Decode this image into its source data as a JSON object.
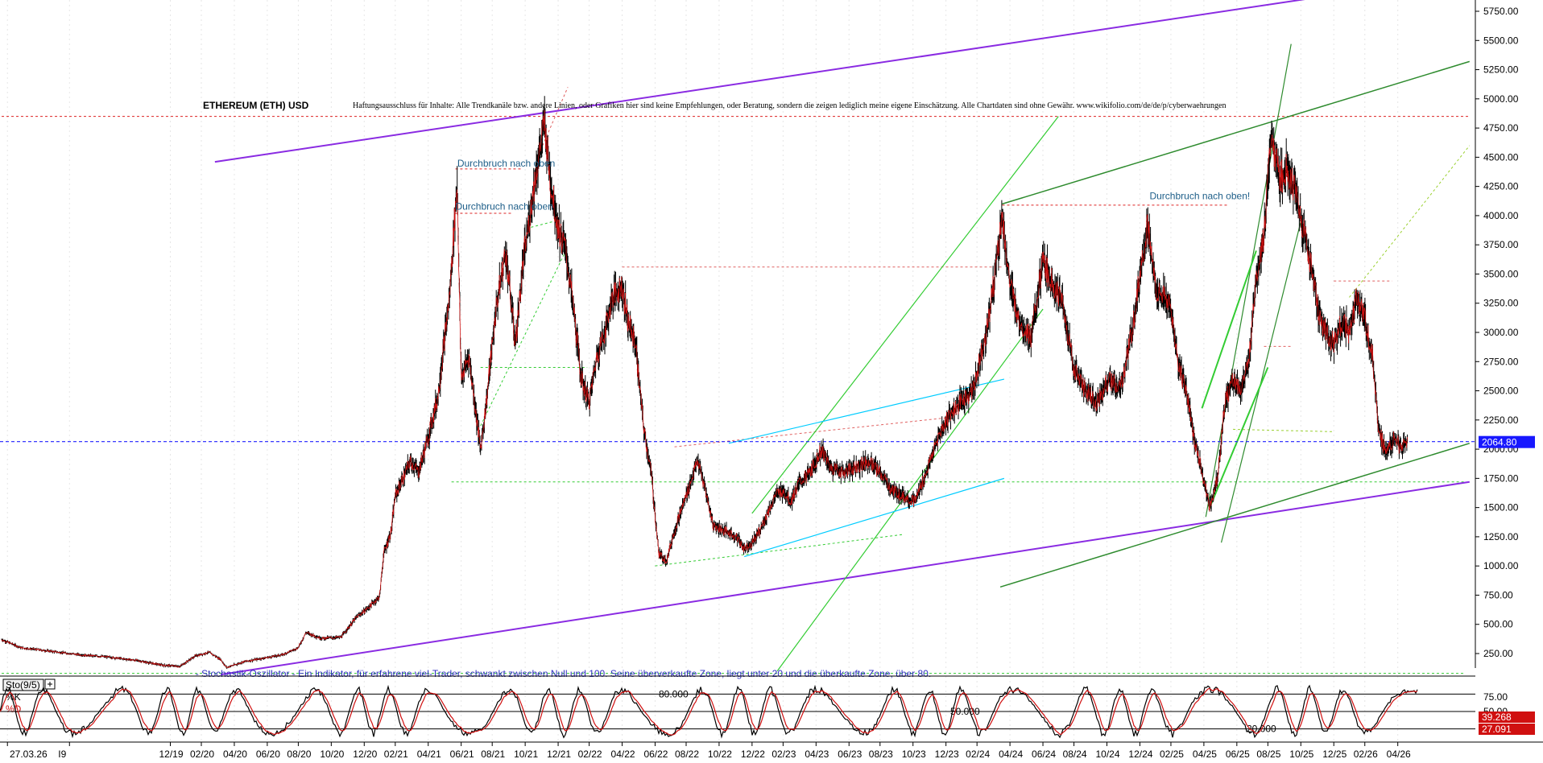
{
  "chart_data": {
    "type": "line",
    "title": "ETHEREUM (ETH) USD",
    "disclaimer": "Haftungsausschluss für Inhalte: Alle Trendkanäle bzw. andere Linien, oder Grafiken hier sind keine Empfehlungen, oder Beratung, sondern die zeigen lediglich meine eigene Einschätzung. Alle Chartdaten sind ohne Gewähr.  www.wikifolio.com/de/de/p/cyberwaehrungen",
    "price_axis": {
      "ylim": [
        0,
        5900
      ],
      "ticks": [
        250,
        500,
        750,
        1000,
        1250,
        1500,
        1750,
        2000,
        2250,
        2500,
        2750,
        3000,
        3250,
        3500,
        3750,
        4000,
        4250,
        4500,
        4750,
        5000,
        5250,
        5500,
        5750
      ],
      "tick_labels": [
        "250.00",
        "500.00",
        "750.00",
        "1000.00",
        "1250.00",
        "1500.00",
        "1750.00",
        "2000.00",
        "2250.00",
        "2500.00",
        "2750.00",
        "3000.00",
        "3250.00",
        "3500.00",
        "3750.00",
        "4000.00",
        "4250.00",
        "4500.00",
        "4750.00",
        "5000.00",
        "5250.00",
        "5500.00",
        "5750.00"
      ]
    },
    "x_axis": {
      "range": [
        2019.05,
        2026.65
      ],
      "ticks": [
        {
          "label": "27.03.26",
          "t": 2019.08
        },
        {
          "label": "I9",
          "t": 2019.4
        },
        {
          "label": "12/19",
          "t": 2019.92
        },
        {
          "label": "02/20",
          "t": 2020.08
        },
        {
          "label": "04/20",
          "t": 2020.25
        },
        {
          "label": "06/20",
          "t": 2020.42
        },
        {
          "label": "08/20",
          "t": 2020.58
        },
        {
          "label": "10/20",
          "t": 2020.75
        },
        {
          "label": "12/20",
          "t": 2020.92
        },
        {
          "label": "02/21",
          "t": 2021.08
        },
        {
          "label": "04/21",
          "t": 2021.25
        },
        {
          "label": "06/21",
          "t": 2021.42
        },
        {
          "label": "08/21",
          "t": 2021.58
        },
        {
          "label": "10/21",
          "t": 2021.75
        },
        {
          "label": "12/21",
          "t": 2021.92
        },
        {
          "label": "02/22",
          "t": 2022.08
        },
        {
          "label": "04/22",
          "t": 2022.25
        },
        {
          "label": "06/22",
          "t": 2022.42
        },
        {
          "label": "08/22",
          "t": 2022.58
        },
        {
          "label": "10/22",
          "t": 2022.75
        },
        {
          "label": "12/22",
          "t": 2022.92
        },
        {
          "label": "02/23",
          "t": 2023.08
        },
        {
          "label": "04/23",
          "t": 2023.25
        },
        {
          "label": "06/23",
          "t": 2023.42
        },
        {
          "label": "08/23",
          "t": 2023.58
        },
        {
          "label": "10/23",
          "t": 2023.75
        },
        {
          "label": "12/23",
          "t": 2023.92
        },
        {
          "label": "02/24",
          "t": 2024.08
        },
        {
          "label": "04/24",
          "t": 2024.25
        },
        {
          "label": "06/24",
          "t": 2024.42
        },
        {
          "label": "08/24",
          "t": 2024.58
        },
        {
          "label": "10/24",
          "t": 2024.75
        },
        {
          "label": "12/24",
          "t": 2024.92
        },
        {
          "label": "02/25",
          "t": 2025.08
        },
        {
          "label": "04/25",
          "t": 2025.25
        },
        {
          "label": "06/25",
          "t": 2025.42
        },
        {
          "label": "08/25",
          "t": 2025.58
        },
        {
          "label": "10/25",
          "t": 2025.75
        },
        {
          "label": "12/25",
          "t": 2025.92
        },
        {
          "label": "02/26",
          "t": 2026.08
        },
        {
          "label": "04/26",
          "t": 2026.25
        }
      ]
    },
    "price_series": [
      [
        2019.05,
        370
      ],
      [
        2019.15,
        300
      ],
      [
        2019.3,
        270
      ],
      [
        2019.45,
        240
      ],
      [
        2019.6,
        220
      ],
      [
        2019.75,
        190
      ],
      [
        2019.88,
        150
      ],
      [
        2019.97,
        140
      ],
      [
        2020.05,
        230
      ],
      [
        2020.12,
        260
      ],
      [
        2020.18,
        200
      ],
      [
        2020.21,
        130
      ],
      [
        2020.3,
        180
      ],
      [
        2020.4,
        210
      ],
      [
        2020.5,
        240
      ],
      [
        2020.58,
        300
      ],
      [
        2020.62,
        430
      ],
      [
        2020.7,
        380
      ],
      [
        2020.8,
        390
      ],
      [
        2020.88,
        560
      ],
      [
        2020.94,
        640
      ],
      [
        2021.0,
        740
      ],
      [
        2021.02,
        1100
      ],
      [
        2021.06,
        1300
      ],
      [
        2021.08,
        1600
      ],
      [
        2021.12,
        1750
      ],
      [
        2021.16,
        1900
      ],
      [
        2021.2,
        1800
      ],
      [
        2021.25,
        2100
      ],
      [
        2021.3,
        2450
      ],
      [
        2021.36,
        3300
      ],
      [
        2021.4,
        4300
      ],
      [
        2021.42,
        2600
      ],
      [
        2021.46,
        2800
      ],
      [
        2021.52,
        2000
      ],
      [
        2021.55,
        2400
      ],
      [
        2021.6,
        3200
      ],
      [
        2021.65,
        3700
      ],
      [
        2021.7,
        2900
      ],
      [
        2021.74,
        3600
      ],
      [
        2021.8,
        4300
      ],
      [
        2021.85,
        4800
      ],
      [
        2021.88,
        4300
      ],
      [
        2021.92,
        3900
      ],
      [
        2021.96,
        3700
      ],
      [
        2022.0,
        3200
      ],
      [
        2022.04,
        2600
      ],
      [
        2022.08,
        2400
      ],
      [
        2022.12,
        2800
      ],
      [
        2022.16,
        3000
      ],
      [
        2022.2,
        3300
      ],
      [
        2022.25,
        3400
      ],
      [
        2022.28,
        3100
      ],
      [
        2022.32,
        2900
      ],
      [
        2022.36,
        2200
      ],
      [
        2022.4,
        1800
      ],
      [
        2022.44,
        1100
      ],
      [
        2022.48,
        1050
      ],
      [
        2022.52,
        1300
      ],
      [
        2022.56,
        1500
      ],
      [
        2022.6,
        1700
      ],
      [
        2022.64,
        1900
      ],
      [
        2022.68,
        1650
      ],
      [
        2022.72,
        1350
      ],
      [
        2022.78,
        1300
      ],
      [
        2022.84,
        1250
      ],
      [
        2022.88,
        1150
      ],
      [
        2022.92,
        1200
      ],
      [
        2022.96,
        1300
      ],
      [
        2023.0,
        1450
      ],
      [
        2023.04,
        1600
      ],
      [
        2023.08,
        1650
      ],
      [
        2023.12,
        1550
      ],
      [
        2023.16,
        1700
      ],
      [
        2023.22,
        1800
      ],
      [
        2023.28,
        2000
      ],
      [
        2023.32,
        1850
      ],
      [
        2023.4,
        1800
      ],
      [
        2023.46,
        1850
      ],
      [
        2023.52,
        1900
      ],
      [
        2023.58,
        1800
      ],
      [
        2023.64,
        1650
      ],
      [
        2023.7,
        1600
      ],
      [
        2023.76,
        1550
      ],
      [
        2023.82,
        1800
      ],
      [
        2023.88,
        2100
      ],
      [
        2023.94,
        2300
      ],
      [
        2024.0,
        2400
      ],
      [
        2024.06,
        2500
      ],
      [
        2024.1,
        2800
      ],
      [
        2024.14,
        3100
      ],
      [
        2024.18,
        3600
      ],
      [
        2024.21,
        4000
      ],
      [
        2024.25,
        3400
      ],
      [
        2024.3,
        3100
      ],
      [
        2024.36,
        2950
      ],
      [
        2024.42,
        3600
      ],
      [
        2024.48,
        3400
      ],
      [
        2024.52,
        3250
      ],
      [
        2024.58,
        2700
      ],
      [
        2024.64,
        2500
      ],
      [
        2024.7,
        2400
      ],
      [
        2024.76,
        2600
      ],
      [
        2024.82,
        2500
      ],
      [
        2024.88,
        3000
      ],
      [
        2024.92,
        3500
      ],
      [
        2024.96,
        3900
      ],
      [
        2025.0,
        3400
      ],
      [
        2025.04,
        3300
      ],
      [
        2025.08,
        3200
      ],
      [
        2025.12,
        2700
      ],
      [
        2025.16,
        2500
      ],
      [
        2025.2,
        2100
      ],
      [
        2025.24,
        1800
      ],
      [
        2025.28,
        1500
      ],
      [
        2025.32,
        1750
      ],
      [
        2025.36,
        2400
      ],
      [
        2025.4,
        2600
      ],
      [
        2025.44,
        2500
      ],
      [
        2025.48,
        2700
      ],
      [
        2025.52,
        3500
      ],
      [
        2025.56,
        3800
      ],
      [
        2025.6,
        4700
      ],
      [
        2025.64,
        4300
      ],
      [
        2025.68,
        4400
      ],
      [
        2025.72,
        4200
      ],
      [
        2025.76,
        3900
      ],
      [
        2025.8,
        3600
      ],
      [
        2025.84,
        3200
      ],
      [
        2025.88,
        3000
      ],
      [
        2025.92,
        2900
      ],
      [
        2025.96,
        3100
      ],
      [
        2026.0,
        3000
      ],
      [
        2026.04,
        3300
      ],
      [
        2026.08,
        3100
      ],
      [
        2026.12,
        2800
      ],
      [
        2026.15,
        2200
      ],
      [
        2026.19,
        1950
      ],
      [
        2026.23,
        2100
      ],
      [
        2026.27,
        2000
      ],
      [
        2026.3,
        2065
      ]
    ],
    "series": [
      {
        "name": "%K",
        "color": "#000000"
      },
      {
        "name": "%D",
        "color": "#d01010"
      }
    ],
    "current_price": 2064.8,
    "current_price_label": "2064.80",
    "price_line_color": "#2020ff",
    "annotations": [
      {
        "text": "Durchbruch nach oben",
        "t": 2021.4,
        "y": 4420
      },
      {
        "text": "Durchbruch nach oben",
        "t": 2021.39,
        "y": 4050
      },
      {
        "text": "Durchbruch nach oben!",
        "t": 2024.97,
        "y": 4140
      },
      {
        "text": "- Stochastik-Oszillator - Ein Indikator, für erfahrene viel-Trader, schwankt zwischen Null und 100. Seine überverkaufte Zone, liegt unter 20 und die überkaufte Zone, über 80.",
        "t": 2020.05,
        "y": 50
      }
    ],
    "trendlines": [
      {
        "color": "#8a2be2",
        "width": 2,
        "points": [
          [
            2020.15,
            4460
          ],
          [
            2025.96,
            5900
          ]
        ]
      },
      {
        "color": "#8a2be2",
        "width": 2,
        "points": [
          [
            2020.18,
            70
          ],
          [
            2026.62,
            1720
          ]
        ]
      },
      {
        "color": "#2e8b2e",
        "width": 1.5,
        "points": [
          [
            2024.21,
            4100
          ],
          [
            2026.62,
            5320
          ]
        ]
      },
      {
        "color": "#2e8b2e",
        "width": 1.5,
        "points": [
          [
            2024.2,
            820
          ],
          [
            2026.62,
            2050
          ]
        ]
      },
      {
        "color": "#2e8b2e",
        "width": 1.2,
        "points": [
          [
            2025.26,
            1420
          ],
          [
            2025.7,
            5470
          ]
        ]
      },
      {
        "color": "#2e8b2e",
        "width": 1.2,
        "points": [
          [
            2025.34,
            1200
          ],
          [
            2025.75,
            3950
          ]
        ]
      },
      {
        "color": "#33cc33",
        "width": 1.2,
        "points": [
          [
            2022.92,
            1450
          ],
          [
            2024.5,
            4850
          ]
        ]
      },
      {
        "color": "#33cc33",
        "width": 1.2,
        "points": [
          [
            2023.05,
            100
          ],
          [
            2024.42,
            3200
          ]
        ]
      },
      {
        "color": "#33cc33",
        "width": 2,
        "points": [
          [
            2025.24,
            2350
          ],
          [
            2025.52,
            3700
          ]
        ]
      },
      {
        "color": "#33cc33",
        "width": 2,
        "points": [
          [
            2025.28,
            1500
          ],
          [
            2025.58,
            2700
          ]
        ]
      },
      {
        "color": "#00ccff",
        "width": 1.2,
        "points": [
          [
            2022.8,
            2050
          ],
          [
            2024.22,
            2600
          ]
        ]
      },
      {
        "color": "#00ccff",
        "width": 1.2,
        "points": [
          [
            2022.88,
            1080
          ],
          [
            2024.22,
            1750
          ]
        ]
      }
    ],
    "dashed_lines": [
      {
        "color": "#dd2222",
        "points": [
          [
            2019.05,
            4850
          ],
          [
            2026.62,
            4850
          ]
        ]
      },
      {
        "color": "#dd2222",
        "points": [
          [
            2021.39,
            4400
          ],
          [
            2021.73,
            4400
          ]
        ]
      },
      {
        "color": "#dd2222",
        "points": [
          [
            2021.39,
            4020
          ],
          [
            2021.68,
            4020
          ]
        ]
      },
      {
        "color": "#dd2222",
        "points": [
          [
            2024.21,
            4090
          ],
          [
            2025.38,
            4090
          ]
        ]
      },
      {
        "color": "#e06060",
        "points": [
          [
            2022.25,
            3560
          ],
          [
            2024.21,
            3560
          ]
        ]
      },
      {
        "color": "#e06060",
        "points": [
          [
            2025.56,
            2880
          ],
          [
            2025.7,
            2880
          ]
        ]
      },
      {
        "color": "#e06060",
        "points": [
          [
            2025.92,
            3440
          ],
          [
            2026.22,
            3440
          ]
        ]
      },
      {
        "color": "#e06060",
        "points": [
          [
            2022.52,
            2020
          ],
          [
            2023.93,
            2270
          ]
        ]
      },
      {
        "color": "#e06060",
        "points": [
          [
            2021.84,
            4600
          ],
          [
            2021.97,
            5100
          ]
        ]
      },
      {
        "color": "#33cc33",
        "points": [
          [
            2021.37,
            1720
          ],
          [
            2026.6,
            1720
          ]
        ]
      },
      {
        "color": "#33cc33",
        "points": [
          [
            2021.52,
            2700
          ],
          [
            2022.07,
            2700
          ]
        ]
      },
      {
        "color": "#33cc33",
        "points": [
          [
            2021.52,
            2200
          ],
          [
            2021.96,
            3700
          ]
        ]
      },
      {
        "color": "#33cc33",
        "points": [
          [
            2021.78,
            3900
          ],
          [
            2021.92,
            3960
          ]
        ]
      },
      {
        "color": "#33cc33",
        "points": [
          [
            2022.42,
            1000
          ],
          [
            2023.7,
            1270
          ]
        ]
      },
      {
        "color": "#33cc33",
        "points": [
          [
            2019.05,
            80
          ],
          [
            2026.6,
            80
          ]
        ]
      },
      {
        "color": "#9ad030",
        "points": [
          [
            2025.4,
            2170
          ],
          [
            2025.92,
            2150
          ]
        ]
      },
      {
        "color": "#9ad030",
        "points": [
          [
            2026.0,
            3300
          ],
          [
            2026.62,
            4600
          ]
        ]
      }
    ],
    "stochastic": {
      "label": "Sto(9/5)",
      "k_name": "%K",
      "d_name": "%D",
      "range": [
        0,
        100
      ],
      "levels": [
        {
          "value": 80,
          "label": "80.000"
        },
        {
          "value": 50,
          "label": "50.000"
        },
        {
          "value": 20,
          "label": "20.000"
        }
      ],
      "readout_k": "39.268",
      "readout_d": "27.091",
      "right_ticks": [
        "75.00",
        "50.00"
      ],
      "bg_k": "#d01010",
      "bg_d": "#d01010"
    }
  }
}
